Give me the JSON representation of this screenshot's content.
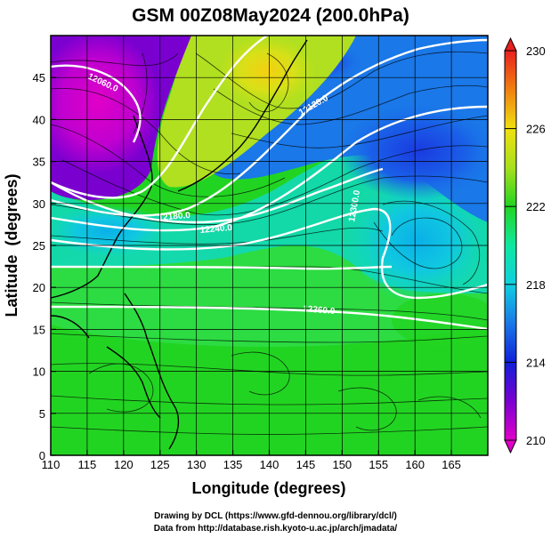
{
  "chart_data": {
    "type": "heatmap",
    "title": "GSM 00Z08May2024 (200.0hPa)",
    "xlabel": "Longitude (degrees)",
    "ylabel": "Latitude  (degrees)",
    "xlim": [
      110,
      170
    ],
    "ylim": [
      0,
      50
    ],
    "x_ticks": [
      110,
      115,
      120,
      125,
      130,
      135,
      140,
      145,
      150,
      155,
      160,
      165
    ],
    "y_ticks": [
      0,
      5,
      10,
      15,
      20,
      25,
      30,
      35,
      40,
      45
    ],
    "grid": true,
    "colorbar": {
      "min": 210,
      "max": 230,
      "ticks": [
        210,
        214,
        218,
        222,
        226,
        230
      ],
      "colors": [
        "#e000c8",
        "#7a00d0",
        "#1020d8",
        "#1a78e8",
        "#10d0e0",
        "#10e8a0",
        "#22d422",
        "#a8e01c",
        "#f0e010",
        "#f08010",
        "#e82020"
      ]
    },
    "contour_labels": [
      "12060.0",
      "12180.0",
      "12120.0",
      "12240.0",
      "12300.0",
      "12360.0"
    ],
    "overlay": "streamlines"
  },
  "credits": {
    "line1": "Drawing by DCL (https://www.gfd-dennou.org/library/dcl/)",
    "line2": "Data from http://database.rish.kyoto-u.ac.jp/arch/jmadata/"
  }
}
